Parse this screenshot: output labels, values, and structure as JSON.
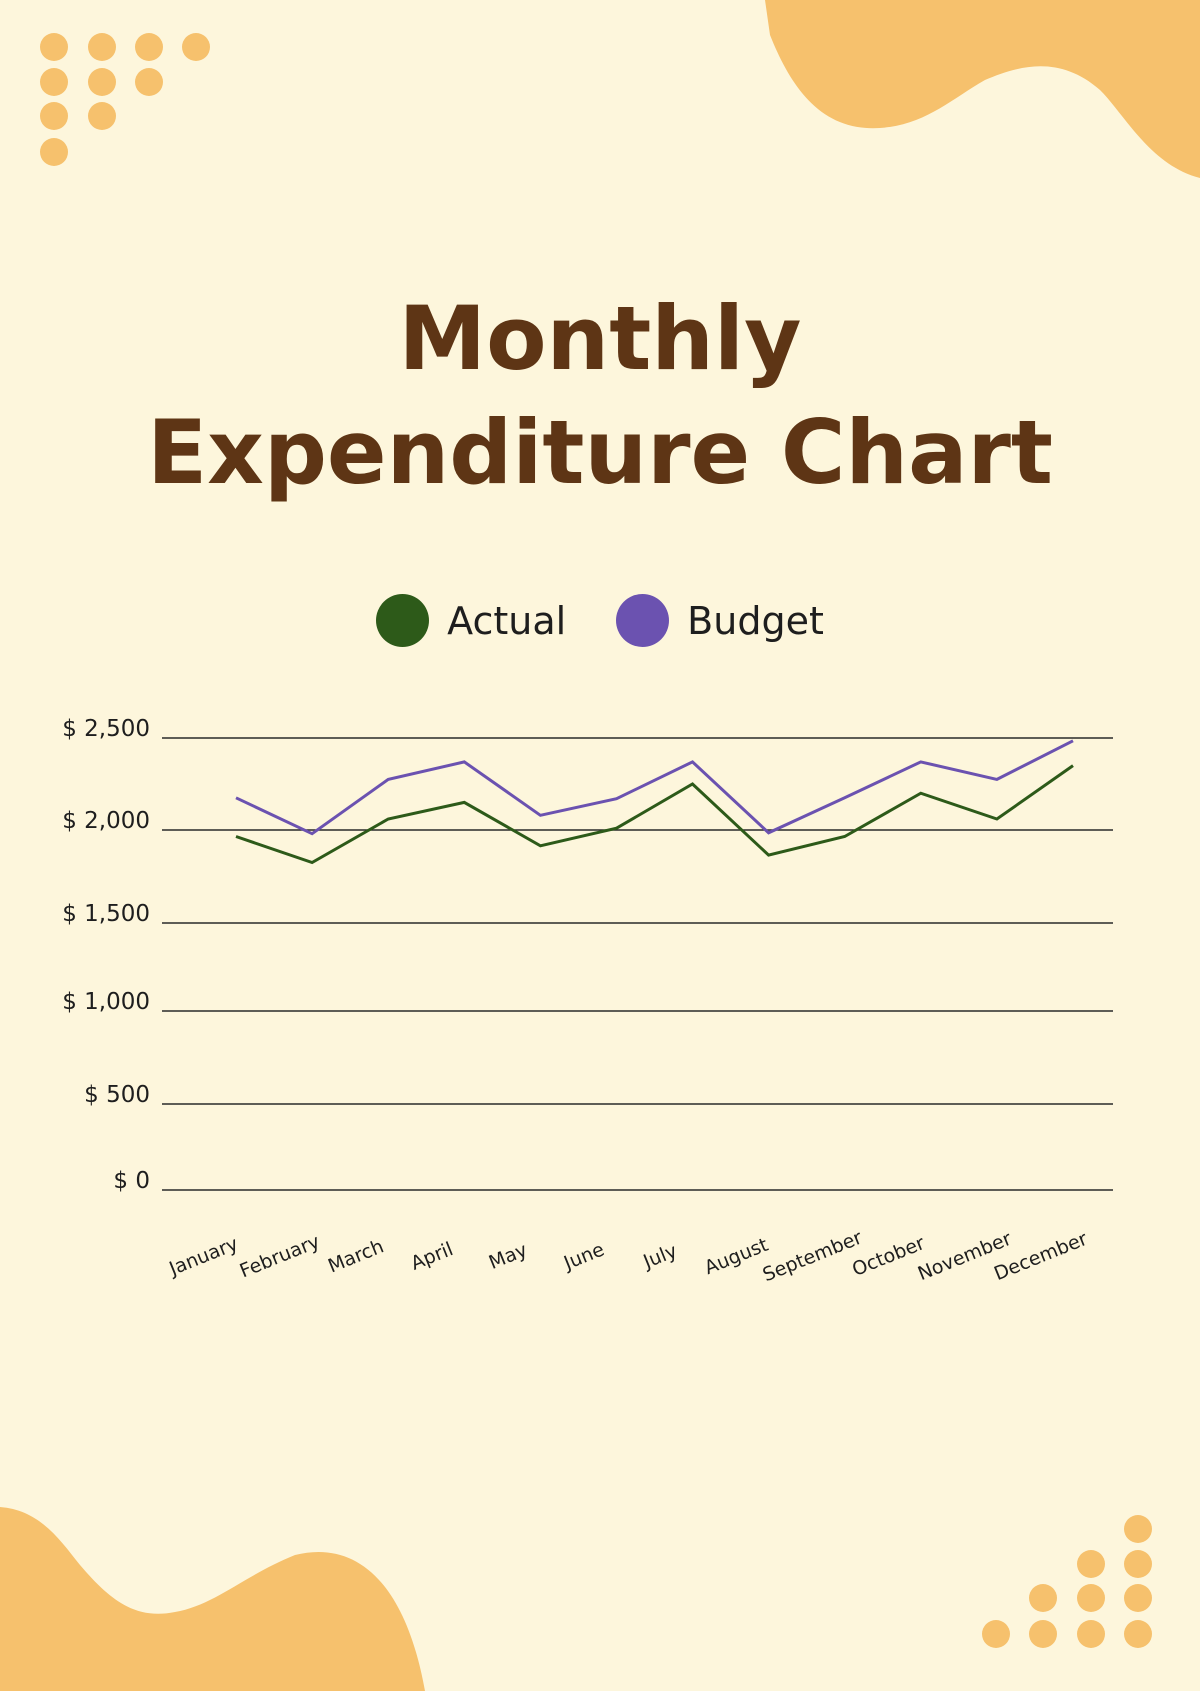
{
  "title_line1": "Monthly",
  "title_line2": "Expenditure Chart",
  "colors": {
    "background": "#FDF6DC",
    "title": "#5E3515",
    "decoration": "#F6C16D",
    "actual": "#2D5A19",
    "budget": "#6B52B0",
    "grid": "#2A2A2A"
  },
  "chart_data": {
    "type": "line",
    "title": "Monthly Expenditure Chart",
    "categories": [
      "January",
      "February",
      "March",
      "April",
      "May",
      "June",
      "July",
      "August",
      "September",
      "October",
      "November",
      "December"
    ],
    "series": [
      {
        "name": "Actual",
        "color": "#2D5A19",
        "values": [
          1965,
          1825,
          2060,
          2150,
          1915,
          2010,
          2250,
          1865,
          1965,
          2200,
          2060,
          2350
        ]
      },
      {
        "name": "Budget",
        "color": "#6B52B0",
        "values": [
          2175,
          1980,
          2275,
          2370,
          2080,
          2170,
          2370,
          1985,
          2175,
          2370,
          2275,
          2485
        ]
      }
    ],
    "y_ticks": [
      {
        "value": 2500,
        "label": "$ 2,500"
      },
      {
        "value": 2000,
        "label": "$ 2,000"
      },
      {
        "value": 1500,
        "label": "$ 1,500"
      },
      {
        "value": 1000,
        "label": "$ 1,000"
      },
      {
        "value": 500,
        "label": "$ 500"
      },
      {
        "value": 0,
        "label": "$ 0"
      }
    ],
    "ylim": [
      0,
      2500
    ],
    "grid": true,
    "legend_position": "top-center"
  }
}
